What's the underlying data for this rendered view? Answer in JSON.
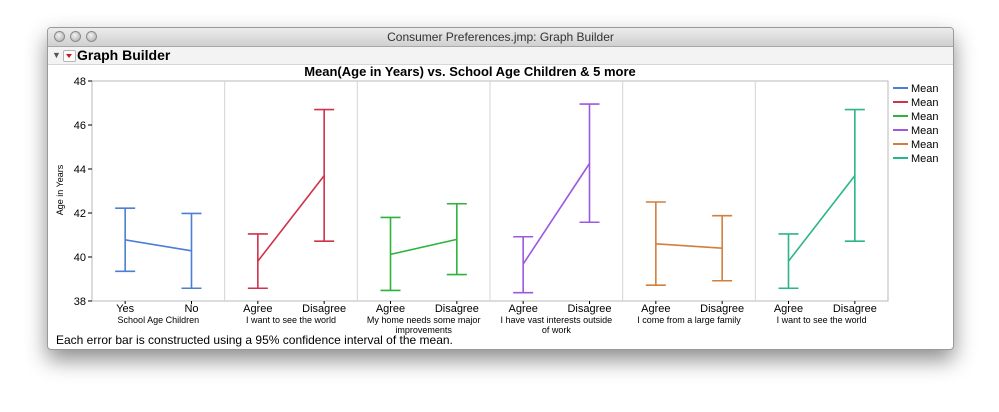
{
  "window": {
    "title": "Consumer Preferences.jmp: Graph Builder",
    "outline_title": "Graph Builder"
  },
  "chart_data": {
    "type": "error-bar",
    "title": "Mean(Age in Years) vs. School Age Children & 5 more",
    "ylabel": "Age in Years",
    "ylim": [
      38,
      48
    ],
    "yticks": [
      38,
      40,
      42,
      44,
      46,
      48
    ],
    "grid": false,
    "legend_position": "right",
    "footnote": "Each error bar is constructed using a 95% confidence interval of the mean.",
    "panels": [
      {
        "label_lines": [
          "School Age Children"
        ],
        "categories": [
          "Yes",
          "No"
        ],
        "color": "#4a7fd4",
        "mean": [
          40.78,
          40.28
        ],
        "lower": [
          39.35,
          38.58
        ],
        "upper": [
          42.22,
          41.98
        ]
      },
      {
        "label_lines": [
          "I want to see the world"
        ],
        "categories": [
          "Agree",
          "Disagree"
        ],
        "color": "#d0324a",
        "mean": [
          39.81,
          43.7
        ],
        "lower": [
          38.58,
          40.72
        ],
        "upper": [
          41.05,
          46.7
        ]
      },
      {
        "label_lines": [
          "My home needs some major",
          "improvements"
        ],
        "categories": [
          "Agree",
          "Disagree"
        ],
        "color": "#2db33c",
        "mean": [
          40.12,
          40.8
        ],
        "lower": [
          38.48,
          39.2
        ],
        "upper": [
          41.8,
          42.42
        ]
      },
      {
        "label_lines": [
          "I have vast interests outside",
          "of work"
        ],
        "categories": [
          "Agree",
          "Disagree"
        ],
        "color": "#9b58e0",
        "mean": [
          39.68,
          44.25
        ],
        "lower": [
          38.38,
          41.58
        ],
        "upper": [
          40.92,
          46.95
        ]
      },
      {
        "label_lines": [
          "I come from a large family"
        ],
        "categories": [
          "Agree",
          "Disagree"
        ],
        "color": "#d27f3e",
        "mean": [
          40.6,
          40.4
        ],
        "lower": [
          38.72,
          38.92
        ],
        "upper": [
          42.5,
          41.88
        ]
      },
      {
        "label_lines": [
          "I want to see the world"
        ],
        "categories": [
          "Agree",
          "Disagree"
        ],
        "color": "#2bb58a",
        "mean": [
          39.81,
          43.7
        ],
        "lower": [
          38.58,
          40.72
        ],
        "upper": [
          41.05,
          46.7
        ]
      }
    ],
    "legend": [
      {
        "label": "Mean",
        "color": "#4a7fd4"
      },
      {
        "label": "Mean",
        "color": "#d0324a"
      },
      {
        "label": "Mean",
        "color": "#2db33c"
      },
      {
        "label": "Mean",
        "color": "#9b58e0"
      },
      {
        "label": "Mean",
        "color": "#d27f3e"
      },
      {
        "label": "Mean",
        "color": "#2bb58a"
      }
    ]
  }
}
